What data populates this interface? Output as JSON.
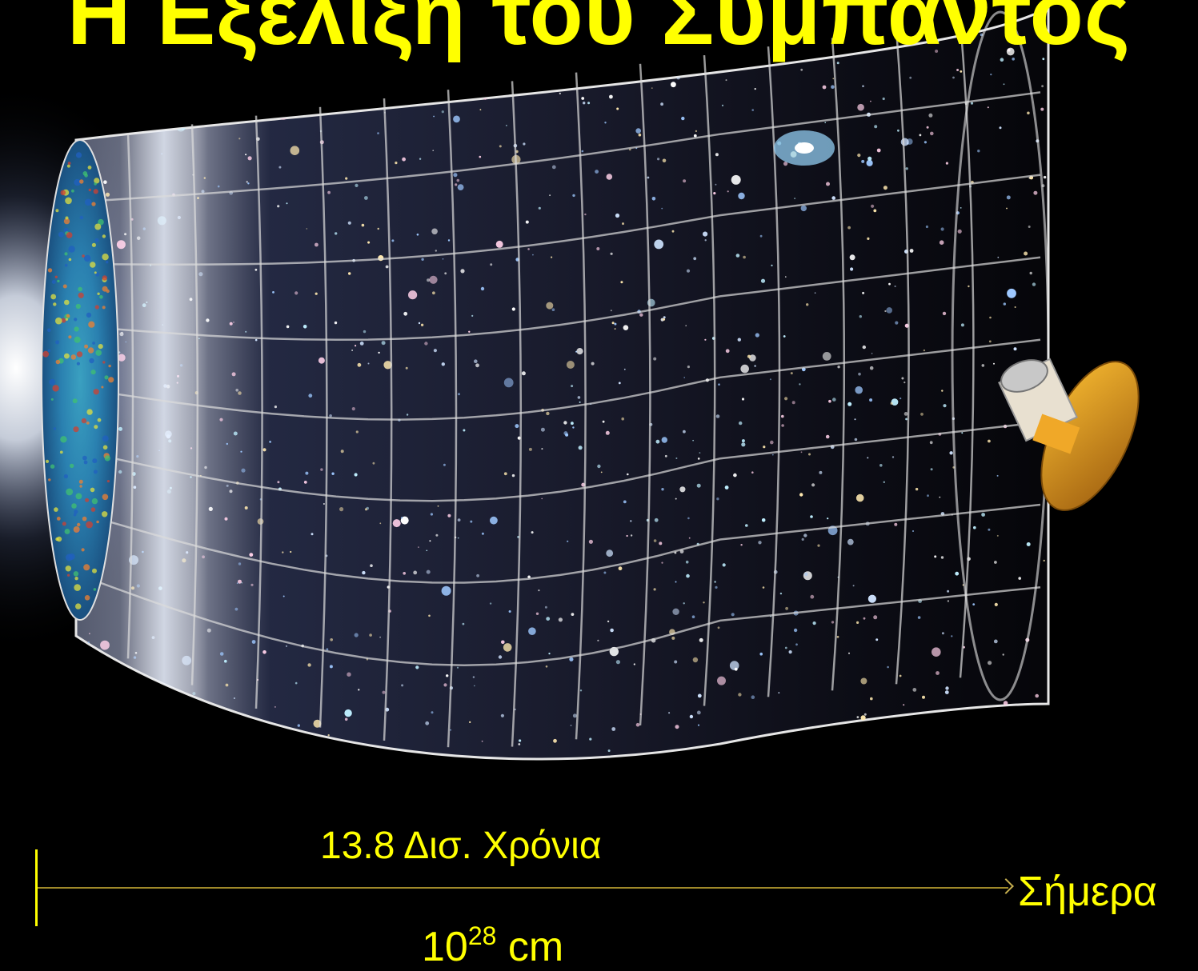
{
  "slide": {
    "title": "Η Εξέλιξη του Σύμπαντος",
    "timeline": {
      "span_label": "13.8 Δισ. Χρόνια",
      "size_base": "10",
      "size_exponent": "28",
      "size_unit": " cm",
      "end_label": "Σήμερα"
    }
  },
  "colors": {
    "background": "#000000",
    "text_accent": "#ffff00",
    "timeline_line": "#a08a2a",
    "grid_lines": "#dcdcdc"
  },
  "image": {
    "depicts": "universe-expansion-funnel",
    "elements": [
      "big-bang-flash",
      "cosmic-microwave-background-disk",
      "galaxy-filled-grid-funnel",
      "wmap-satellite"
    ]
  }
}
